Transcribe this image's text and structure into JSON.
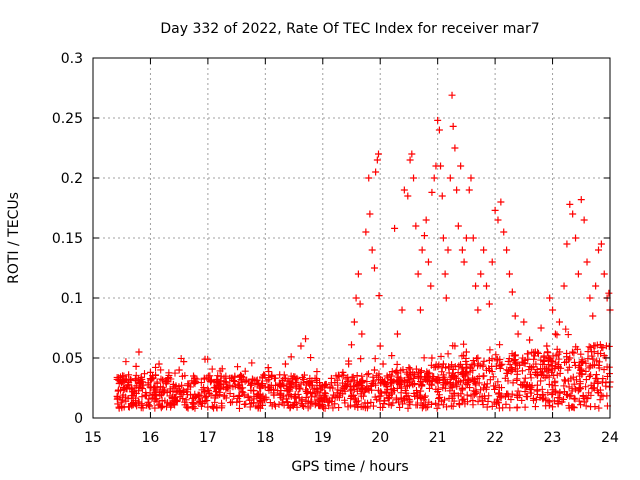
{
  "chart_data": {
    "type": "scatter",
    "title": "Day 332 of 2022, Rate Of TEC Index for receiver mar7",
    "xlabel": "GPS time / hours",
    "ylabel": "ROTI / TECUs",
    "xlim": [
      15,
      24
    ],
    "ylim": [
      0,
      0.3
    ],
    "x_ticks": [
      15,
      16,
      17,
      18,
      19,
      20,
      21,
      22,
      23,
      24
    ],
    "x_tick_labels": [
      "15",
      "16",
      "17",
      "18",
      "19",
      "20",
      "21",
      "22",
      "23",
      "24"
    ],
    "y_ticks": [
      0,
      0.05,
      0.1,
      0.15,
      0.2,
      0.25,
      0.3
    ],
    "y_tick_labels": [
      "0",
      "0.05",
      "0.1",
      "0.15",
      "0.2",
      "0.25",
      "0.3"
    ],
    "grid": true,
    "marker": "+",
    "color": "#ff0000",
    "series": [
      {
        "name": "ROTI",
        "points": [
          [
            15.42,
            0.018
          ],
          [
            15.48,
            0.032
          ],
          [
            15.55,
            0.025
          ],
          [
            15.62,
            0.036
          ],
          [
            15.7,
            0.022
          ],
          [
            15.75,
            0.043
          ],
          [
            15.8,
            0.055
          ],
          [
            15.86,
            0.03
          ],
          [
            15.93,
            0.019
          ],
          [
            16.0,
            0.038
          ],
          [
            16.08,
            0.026
          ],
          [
            16.15,
            0.045
          ],
          [
            16.22,
            0.021
          ],
          [
            16.3,
            0.033
          ],
          [
            16.4,
            0.028
          ],
          [
            16.5,
            0.04
          ],
          [
            16.58,
            0.047
          ],
          [
            16.65,
            0.024
          ],
          [
            16.75,
            0.035
          ],
          [
            16.85,
            0.019
          ],
          [
            16.95,
            0.049
          ],
          [
            17.05,
            0.03
          ],
          [
            17.15,
            0.022
          ],
          [
            17.25,
            0.041
          ],
          [
            17.35,
            0.026
          ],
          [
            17.45,
            0.018
          ],
          [
            17.55,
            0.034
          ],
          [
            17.65,
            0.039
          ],
          [
            17.75,
            0.023
          ],
          [
            17.85,
            0.031
          ],
          [
            17.95,
            0.027
          ],
          [
            18.05,
            0.042
          ],
          [
            18.15,
            0.019
          ],
          [
            18.25,
            0.036
          ],
          [
            18.35,
            0.045
          ],
          [
            18.45,
            0.051
          ],
          [
            18.55,
            0.033
          ],
          [
            18.62,
            0.06
          ],
          [
            18.7,
            0.066
          ],
          [
            18.75,
            0.029
          ],
          [
            18.85,
            0.024
          ],
          [
            18.95,
            0.019
          ],
          [
            19.05,
            0.028
          ],
          [
            19.15,
            0.033
          ],
          [
            19.25,
            0.021
          ],
          [
            19.35,
            0.038
          ],
          [
            19.45,
            0.045
          ],
          [
            19.5,
            0.061
          ],
          [
            19.55,
            0.08
          ],
          [
            19.58,
            0.1
          ],
          [
            19.62,
            0.12
          ],
          [
            19.65,
            0.095
          ],
          [
            19.68,
            0.07
          ],
          [
            19.75,
            0.155
          ],
          [
            19.8,
            0.2
          ],
          [
            19.82,
            0.17
          ],
          [
            19.86,
            0.14
          ],
          [
            19.9,
            0.125
          ],
          [
            19.92,
            0.205
          ],
          [
            19.95,
            0.215
          ],
          [
            19.97,
            0.22
          ],
          [
            19.98,
            0.102
          ],
          [
            20.0,
            0.06
          ],
          [
            20.05,
            0.045
          ],
          [
            20.12,
            0.035
          ],
          [
            20.2,
            0.052
          ],
          [
            20.25,
            0.158
          ],
          [
            20.3,
            0.07
          ],
          [
            20.38,
            0.09
          ],
          [
            20.42,
            0.19
          ],
          [
            20.48,
            0.185
          ],
          [
            20.52,
            0.215
          ],
          [
            20.55,
            0.22
          ],
          [
            20.58,
            0.2
          ],
          [
            20.62,
            0.16
          ],
          [
            20.66,
            0.12
          ],
          [
            20.7,
            0.09
          ],
          [
            20.73,
            0.14
          ],
          [
            20.77,
            0.152
          ],
          [
            20.8,
            0.165
          ],
          [
            20.84,
            0.13
          ],
          [
            20.88,
            0.11
          ],
          [
            20.9,
            0.188
          ],
          [
            20.94,
            0.2
          ],
          [
            20.97,
            0.21
          ],
          [
            21.0,
            0.248
          ],
          [
            21.03,
            0.24
          ],
          [
            21.05,
            0.21
          ],
          [
            21.08,
            0.185
          ],
          [
            21.1,
            0.15
          ],
          [
            21.13,
            0.12
          ],
          [
            21.15,
            0.1
          ],
          [
            21.18,
            0.14
          ],
          [
            21.22,
            0.2
          ],
          [
            21.25,
            0.269
          ],
          [
            21.27,
            0.243
          ],
          [
            21.3,
            0.225
          ],
          [
            21.33,
            0.19
          ],
          [
            21.36,
            0.16
          ],
          [
            21.4,
            0.21
          ],
          [
            21.43,
            0.14
          ],
          [
            21.46,
            0.13
          ],
          [
            21.5,
            0.15
          ],
          [
            21.55,
            0.19
          ],
          [
            21.58,
            0.2
          ],
          [
            21.62,
            0.15
          ],
          [
            21.66,
            0.11
          ],
          [
            21.7,
            0.09
          ],
          [
            21.75,
            0.12
          ],
          [
            21.8,
            0.14
          ],
          [
            21.85,
            0.11
          ],
          [
            21.9,
            0.095
          ],
          [
            21.95,
            0.13
          ],
          [
            22.0,
            0.173
          ],
          [
            22.05,
            0.165
          ],
          [
            22.1,
            0.18
          ],
          [
            22.15,
            0.155
          ],
          [
            22.2,
            0.14
          ],
          [
            22.25,
            0.12
          ],
          [
            22.3,
            0.105
          ],
          [
            22.35,
            0.085
          ],
          [
            22.4,
            0.07
          ],
          [
            22.5,
            0.08
          ],
          [
            22.6,
            0.065
          ],
          [
            22.7,
            0.055
          ],
          [
            22.8,
            0.075
          ],
          [
            22.9,
            0.06
          ],
          [
            22.95,
            0.1
          ],
          [
            23.0,
            0.09
          ],
          [
            23.05,
            0.07
          ],
          [
            23.12,
            0.08
          ],
          [
            23.2,
            0.11
          ],
          [
            23.25,
            0.145
          ],
          [
            23.3,
            0.178
          ],
          [
            23.35,
            0.17
          ],
          [
            23.4,
            0.15
          ],
          [
            23.45,
            0.12
          ],
          [
            23.5,
            0.182
          ],
          [
            23.55,
            0.165
          ],
          [
            23.6,
            0.13
          ],
          [
            23.65,
            0.1
          ],
          [
            23.7,
            0.085
          ],
          [
            23.75,
            0.11
          ],
          [
            23.8,
            0.14
          ],
          [
            23.85,
            0.145
          ],
          [
            23.9,
            0.12
          ],
          [
            23.95,
            0.1
          ],
          [
            23.98,
            0.104
          ],
          [
            24.0,
            0.09
          ],
          [
            19.6,
            0.03
          ],
          [
            19.7,
            0.025
          ],
          [
            19.9,
            0.04
          ],
          [
            20.1,
            0.028
          ],
          [
            20.3,
            0.03
          ],
          [
            20.5,
            0.042
          ],
          [
            20.7,
            0.038
          ],
          [
            20.9,
            0.05
          ],
          [
            21.1,
            0.045
          ],
          [
            21.3,
            0.06
          ],
          [
            21.5,
            0.055
          ],
          [
            21.7,
            0.05
          ],
          [
            21.9,
            0.048
          ],
          [
            22.1,
            0.044
          ],
          [
            22.3,
            0.04
          ],
          [
            22.5,
            0.046
          ],
          [
            22.7,
            0.038
          ],
          [
            22.9,
            0.041
          ],
          [
            23.1,
            0.043
          ],
          [
            23.3,
            0.05
          ],
          [
            23.5,
            0.046
          ],
          [
            23.7,
            0.044
          ],
          [
            23.9,
            0.052
          ],
          [
            20.2,
            0.02
          ],
          [
            20.6,
            0.018
          ],
          [
            21.0,
            0.022
          ],
          [
            21.4,
            0.03
          ],
          [
            21.8,
            0.025
          ],
          [
            22.2,
            0.02
          ],
          [
            22.6,
            0.027
          ],
          [
            23.0,
            0.02
          ],
          [
            23.4,
            0.024
          ],
          [
            23.8,
            0.021
          ],
          [
            24.0,
            0.03
          ]
        ]
      }
    ]
  }
}
